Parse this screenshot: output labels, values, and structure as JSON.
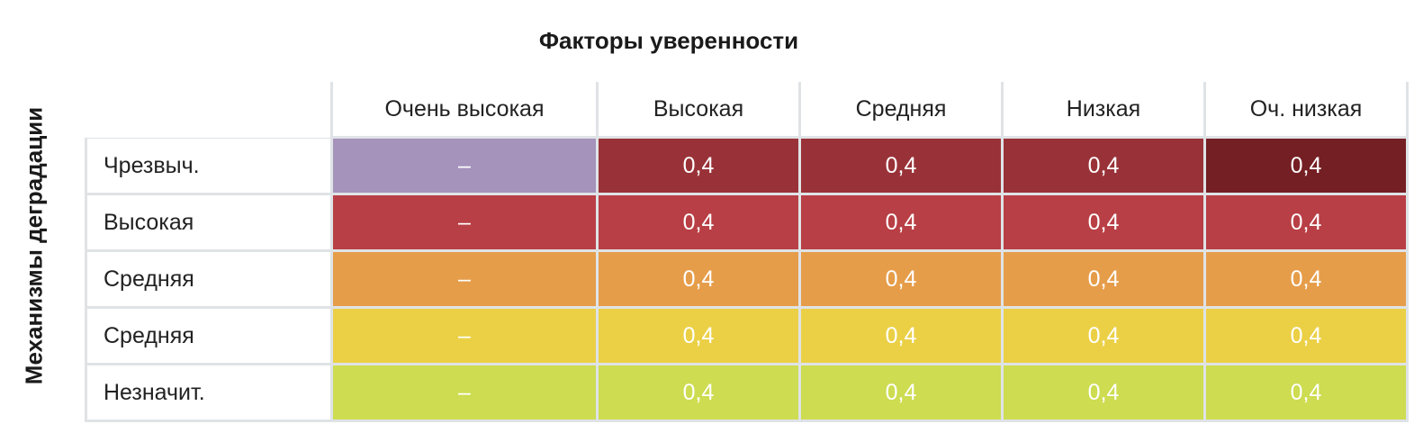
{
  "chart_data": {
    "type": "heatmap",
    "title": "Факторы уверенности",
    "ylabel": "Механизмы деградации",
    "columns": [
      "Очень высокая",
      "Высокая",
      "Средняя",
      "Низкая",
      "Оч. низкая"
    ],
    "rows": [
      "Чрезвыч.",
      "Высокая",
      "Средняя",
      "Средняя",
      "Незначит."
    ],
    "values": [
      [
        "–",
        "0,4",
        "0,4",
        "0,4",
        "0,4"
      ],
      [
        "–",
        "0,4",
        "0,4",
        "0,4",
        "0,4"
      ],
      [
        "–",
        "0,4",
        "0,4",
        "0,4",
        "0,4"
      ],
      [
        "–",
        "0,4",
        "0,4",
        "0,4",
        "0,4"
      ],
      [
        "–",
        "0,4",
        "0,4",
        "0,4",
        "0,4"
      ]
    ],
    "colors": [
      [
        "#a593bb",
        "#993238",
        "#993238",
        "#993238",
        "#741f23"
      ],
      [
        "#b83f45",
        "#b83f45",
        "#b83f45",
        "#b83f45",
        "#b83f45"
      ],
      [
        "#e69d4a",
        "#e69d4a",
        "#e69d4a",
        "#e69d4a",
        "#e69d4a"
      ],
      [
        "#ebd046",
        "#ebd046",
        "#ebd046",
        "#ebd046",
        "#ebd046"
      ],
      [
        "#cddc50",
        "#cddc50",
        "#cddc50",
        "#cddc50",
        "#cddc50"
      ]
    ]
  }
}
